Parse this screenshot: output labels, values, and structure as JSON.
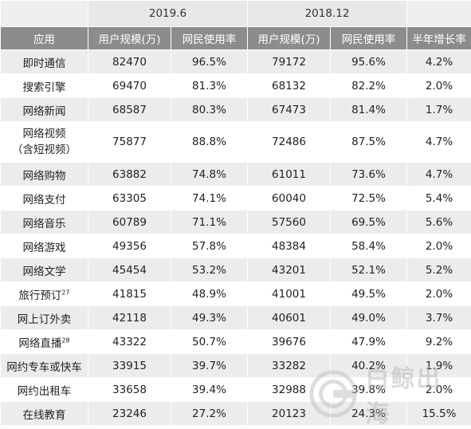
{
  "header": {
    "period_a": "2019.6",
    "period_b": "2018.12",
    "col_app": "应用",
    "col_users_a": "用户规模(万)",
    "col_rate_a": "网民使用率",
    "col_users_b": "用户规模(万)",
    "col_rate_b": "网民使用率",
    "col_growth": "半年增长率"
  },
  "rows": [
    {
      "name": "即时通信",
      "u1": "82470",
      "r1": "96.5%",
      "u2": "79172",
      "r2": "95.6%",
      "g": "4.2%"
    },
    {
      "name": "搜索引擎",
      "u1": "69470",
      "r1": "81.3%",
      "u2": "68132",
      "r2": "82.2%",
      "g": "2.0%"
    },
    {
      "name": "网络新闻",
      "u1": "68587",
      "r1": "80.3%",
      "u2": "67473",
      "r2": "81.4%",
      "g": "1.7%"
    },
    {
      "name": "网络视频",
      "name2": "（含短视频）",
      "u1": "75877",
      "r1": "88.8%",
      "u2": "72486",
      "r2": "87.5%",
      "g": "4.7%"
    },
    {
      "name": "网络购物",
      "u1": "63882",
      "r1": "74.8%",
      "u2": "61011",
      "r2": "73.6%",
      "g": "4.7%"
    },
    {
      "name": "网络支付",
      "u1": "63305",
      "r1": "74.1%",
      "u2": "60040",
      "r2": "72.5%",
      "g": "5.4%"
    },
    {
      "name": "网络音乐",
      "u1": "60789",
      "r1": "71.1%",
      "u2": "57560",
      "r2": "69.5%",
      "g": "5.6%"
    },
    {
      "name": "网络游戏",
      "u1": "49356",
      "r1": "57.8%",
      "u2": "48384",
      "r2": "58.4%",
      "g": "2.0%"
    },
    {
      "name": "网络文学",
      "u1": "45454",
      "r1": "53.2%",
      "u2": "43201",
      "r2": "52.1%",
      "g": "5.2%"
    },
    {
      "name": "旅行预订",
      "sup": "27",
      "u1": "41815",
      "r1": "48.9%",
      "u2": "41001",
      "r2": "49.5%",
      "g": "2.0%"
    },
    {
      "name": "网上订外卖",
      "u1": "42118",
      "r1": "49.3%",
      "u2": "40601",
      "r2": "49.0%",
      "g": "3.7%"
    },
    {
      "name": "网络直播",
      "sup": "28",
      "u1": "43322",
      "r1": "50.7%",
      "u2": "39676",
      "r2": "47.9%",
      "g": "9.2%"
    },
    {
      "name": "网约专车或快车",
      "u1": "33915",
      "r1": "39.7%",
      "u2": "33282",
      "r2": "40.2%",
      "g": "1.9%"
    },
    {
      "name": "网约出租车",
      "u1": "33658",
      "r1": "39.4%",
      "u2": "32988",
      "r2": "39.8%",
      "g": "2.0%"
    },
    {
      "name": "在线教育",
      "u1": "23246",
      "r1": "27.2%",
      "u2": "20123",
      "r2": "24.3%",
      "g": "15.5%"
    }
  ],
  "watermark": {
    "text": "白鲸出海",
    "icon": "whale-logo-icon"
  }
}
